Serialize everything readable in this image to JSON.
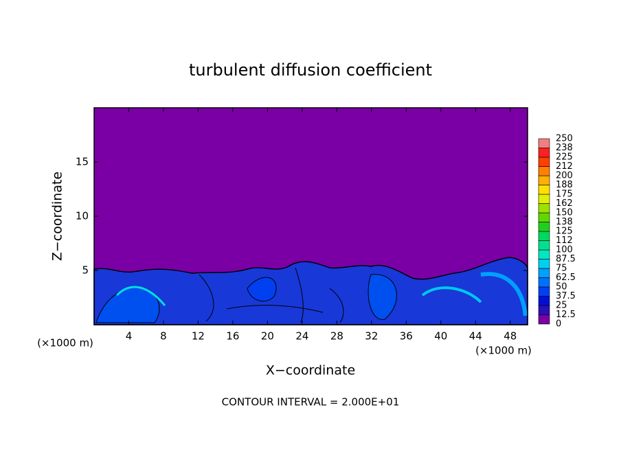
{
  "chart_data": {
    "type": "contour",
    "title": "turbulent diffusion coefficient",
    "xlabel": "X−coordinate",
    "ylabel": "Z−coordinate",
    "x_unit": "(×1000 m)",
    "x_unit_right": "(×1000 m)",
    "annotation": "CONTOUR INTERVAL = 2.000E+01",
    "xlim": [
      0,
      50
    ],
    "ylim": [
      0,
      20
    ],
    "xticks": [
      4,
      8,
      12,
      16,
      20,
      24,
      28,
      32,
      36,
      40,
      44,
      48
    ],
    "yticks": [
      5,
      10,
      15
    ],
    "clim": [
      0,
      250
    ],
    "cticks": [
      0,
      12.5,
      25,
      37.5,
      50,
      62.5,
      75,
      87.5,
      100,
      {
        "value": 112.5,
        "label": "112"
      },
      125,
      {
        "value": 137.5,
        "label": "138"
      },
      150,
      {
        "value": 162.5,
        "label": "162"
      },
      175,
      {
        "value": 187.5,
        "label": "188"
      },
      200,
      {
        "value": 212.5,
        "label": "212"
      },
      225,
      {
        "value": 237.5,
        "label": "238"
      },
      250
    ],
    "colorbar_colors": [
      "#7a00a6",
      "#2a10b8",
      "#0010d8",
      "#0040f0",
      "#0070ff",
      "#00a0ff",
      "#00d0f0",
      "#00e8c0",
      "#00e090",
      "#00d860",
      "#20d020",
      "#60d800",
      "#a0e000",
      "#e0f000",
      "#ffe000",
      "#ffb000",
      "#ff8000",
      "#ff4000",
      "#ff2020",
      "#f08080"
    ]
  }
}
